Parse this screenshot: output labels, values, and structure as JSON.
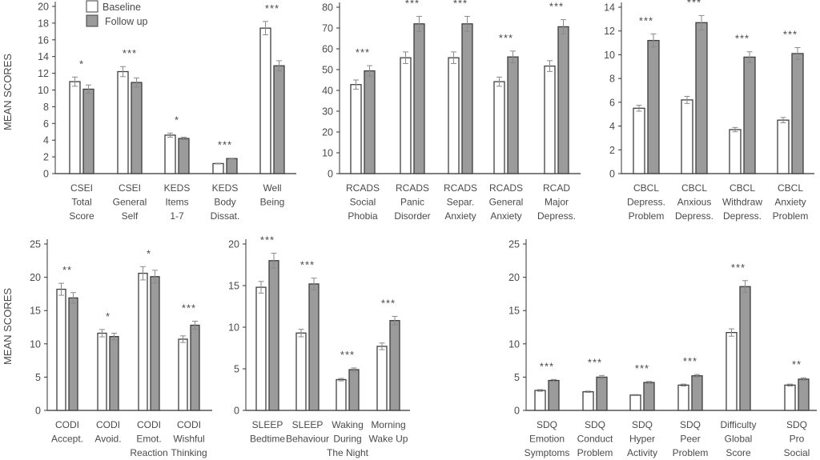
{
  "colors": {
    "baseline": "#ffffff",
    "follow_up": "#9b9b9b",
    "outline": "#3f3f3f",
    "error_bar": "#8a8a8a",
    "axis": "#333333"
  },
  "y_axis_label": "MEAN SCORES",
  "legend": {
    "placement": "top-left of first panel",
    "items": [
      "Baseline",
      "Follow up"
    ]
  },
  "chart_data": [
    {
      "type": "bar",
      "ylim": [
        0,
        20
      ],
      "ytick_step": 2,
      "grid": false,
      "categories": [
        [
          "CSEI",
          "Total",
          "Score"
        ],
        [
          "CSEI",
          "General",
          "Self"
        ],
        [
          "KEDS",
          "Items",
          "1-7"
        ],
        [
          "KEDS",
          "Body",
          "Dissat."
        ],
        [
          "Well",
          "Being"
        ]
      ],
      "series": [
        {
          "name": "Baseline",
          "values": [
            11.0,
            12.2,
            4.6,
            1.2,
            17.4
          ],
          "errors": [
            0.55,
            0.6,
            0.25,
            0.05,
            0.8
          ]
        },
        {
          "name": "Follow up",
          "values": [
            10.1,
            10.9,
            4.2,
            1.8,
            12.9
          ],
          "errors": [
            0.5,
            0.55,
            0.15,
            0.05,
            0.6
          ]
        }
      ],
      "significance": [
        "*",
        "***",
        "*",
        "***",
        "***"
      ]
    },
    {
      "type": "bar",
      "ylim": [
        0,
        80
      ],
      "ytick_step": 10,
      "grid": false,
      "categories": [
        [
          "RCADS",
          "Social",
          "Phobia"
        ],
        [
          "RCADS",
          "Panic",
          "Disorder"
        ],
        [
          "RCADS",
          "Separ.",
          "Anxiety"
        ],
        [
          "RCADS",
          "General",
          "Anxiety"
        ],
        [
          "RCAD",
          "Major",
          "Depress."
        ]
      ],
      "series": [
        {
          "name": "Baseline",
          "values": [
            42.8,
            55.7,
            55.7,
            44.2,
            51.7
          ],
          "errors": [
            2.2,
            2.8,
            2.8,
            2.2,
            2.6
          ]
        },
        {
          "name": "Follow up",
          "values": [
            49.4,
            72.0,
            72.0,
            56.1,
            70.6
          ],
          "errors": [
            2.5,
            3.6,
            3.6,
            2.8,
            3.4
          ]
        }
      ],
      "significance": [
        "***",
        "***",
        "***",
        "***",
        "***"
      ]
    },
    {
      "type": "bar",
      "ylim": [
        0,
        14
      ],
      "ytick_step": 2,
      "grid": false,
      "categories": [
        [
          "CBCL",
          "Depress.",
          "Problem"
        ],
        [
          "CBCL",
          "Anxious",
          "Depress."
        ],
        [
          "CBCL",
          "Withdraw",
          "Depress."
        ],
        [
          "CBCL",
          "Anxiety",
          "Problem"
        ]
      ],
      "series": [
        {
          "name": "Baseline",
          "values": [
            5.5,
            6.2,
            3.7,
            4.5
          ],
          "errors": [
            0.25,
            0.3,
            0.18,
            0.22
          ]
        },
        {
          "name": "Follow up",
          "values": [
            11.2,
            12.7,
            9.8,
            10.1
          ],
          "errors": [
            0.55,
            0.6,
            0.45,
            0.5
          ]
        }
      ],
      "significance": [
        "***",
        "***",
        "***",
        "***"
      ]
    },
    {
      "type": "bar",
      "ylim": [
        0,
        25
      ],
      "ytick_step": 5,
      "grid": false,
      "categories": [
        [
          "CODI",
          "Accept."
        ],
        [
          "CODI",
          "Avoid."
        ],
        [
          "CODI",
          "Emot.",
          "Reaction"
        ],
        [
          "CODI",
          "Wishful",
          "Thinking"
        ]
      ],
      "series": [
        {
          "name": "Baseline",
          "values": [
            18.2,
            11.6,
            20.6,
            10.7
          ],
          "errors": [
            0.9,
            0.55,
            1.0,
            0.5
          ]
        },
        {
          "name": "Follow up",
          "values": [
            16.9,
            11.1,
            20.1,
            12.8
          ],
          "errors": [
            0.8,
            0.5,
            0.95,
            0.6
          ]
        }
      ],
      "significance": [
        "**",
        "*",
        "*",
        "***"
      ]
    },
    {
      "type": "bar",
      "ylim": [
        0,
        20
      ],
      "ytick_step": 5,
      "grid": false,
      "categories": [
        [
          "SLEEP",
          "Bedtime"
        ],
        [
          "SLEEP",
          "Behaviour"
        ],
        [
          "Waking",
          "During",
          "The Night"
        ],
        [
          "Morning",
          "Wake Up"
        ]
      ],
      "series": [
        {
          "name": "Baseline",
          "values": [
            14.8,
            9.3,
            3.7,
            7.7
          ],
          "errors": [
            0.7,
            0.45,
            0.15,
            0.4
          ]
        },
        {
          "name": "Follow up",
          "values": [
            18.0,
            15.2,
            4.9,
            10.8
          ],
          "errors": [
            0.9,
            0.7,
            0.2,
            0.5
          ]
        }
      ],
      "significance": [
        "***",
        "***",
        "***",
        "***"
      ]
    },
    {
      "type": "bar",
      "ylim": [
        0,
        25
      ],
      "ytick_step": 5,
      "grid": false,
      "categories": [
        [
          "SDQ",
          "Emotion",
          "Symptoms"
        ],
        [
          "SDQ",
          "Conduct",
          "Problem"
        ],
        [
          "SDQ",
          "Hyper",
          "Activity"
        ],
        [
          "SDQ",
          "Peer",
          "Problem"
        ],
        [
          "Difficulty",
          "Global",
          "Score"
        ],
        [
          "SDQ",
          "Pro",
          "Social"
        ]
      ],
      "series": [
        {
          "name": "Baseline",
          "values": [
            3.0,
            2.8,
            2.3,
            3.8,
            11.7,
            3.8
          ],
          "errors": [
            0.12,
            0.1,
            0.08,
            0.15,
            0.55,
            0.15
          ]
        },
        {
          "name": "Follow up",
          "values": [
            4.5,
            5.0,
            4.2,
            5.2,
            18.6,
            4.7
          ],
          "errors": [
            0.15,
            0.25,
            0.15,
            0.2,
            0.9,
            0.2
          ]
        }
      ],
      "significance": [
        "***",
        "***",
        "***",
        "***",
        "***",
        "**"
      ]
    }
  ]
}
